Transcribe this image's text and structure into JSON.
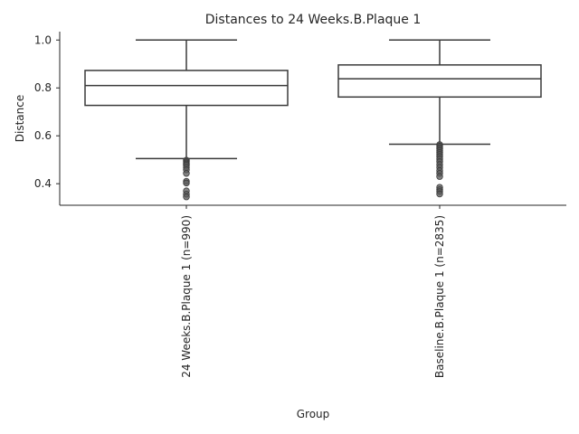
{
  "chart_data": {
    "type": "box",
    "title": "Distances to 24 Weeks.B.Plaque 1",
    "xlabel": "Group",
    "ylabel": "Distance",
    "ylim": [
      0.31,
      1.035
    ],
    "yticks": [
      0.4,
      0.6,
      0.8,
      1.0
    ],
    "ytick_labels": [
      "0.4",
      "0.6",
      "0.8",
      "1.0"
    ],
    "grid": false,
    "categories": [
      "24 Weeks.B.Plaque 1 (n=990)",
      "Baseline.B.Plaque 1 (n=2835)"
    ],
    "boxes": [
      {
        "category": "24 Weeks.B.Plaque 1 (n=990)",
        "whisker_low": 0.505,
        "q1": 0.727,
        "median": 0.81,
        "q3": 0.873,
        "whisker_high": 1.0,
        "outliers": [
          0.498,
          0.492,
          0.487,
          0.482,
          0.477,
          0.468,
          0.458,
          0.443,
          0.41,
          0.403,
          0.37,
          0.356,
          0.345
        ]
      },
      {
        "category": "Baseline.B.Plaque 1 (n=2835)",
        "whisker_low": 0.565,
        "q1": 0.762,
        "median": 0.838,
        "q3": 0.896,
        "whisker_high": 1.0,
        "outliers": [
          0.563,
          0.557,
          0.551,
          0.545,
          0.538,
          0.53,
          0.522,
          0.513,
          0.503,
          0.492,
          0.48,
          0.468,
          0.455,
          0.443,
          0.43,
          0.385,
          0.375,
          0.367,
          0.357
        ]
      }
    ],
    "colors": {
      "box_fill": "#ffffff",
      "line": "#3a3a3a",
      "outlier": "#5a5a5a"
    }
  }
}
